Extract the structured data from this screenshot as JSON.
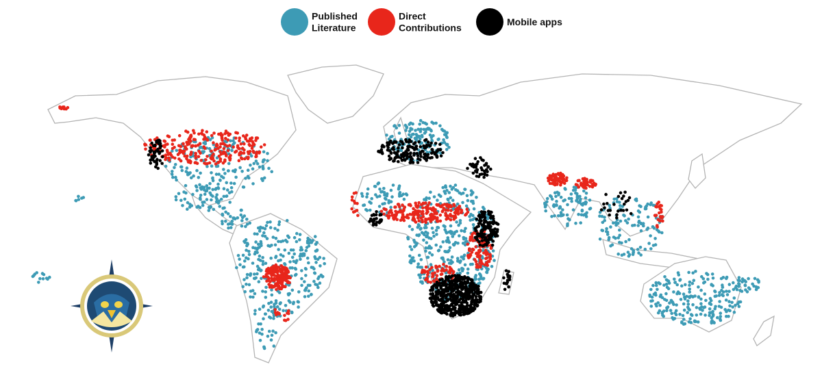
{
  "legend": {
    "items": [
      {
        "lines": [
          "Published",
          "Literature"
        ],
        "color": "#3d9bb5"
      },
      {
        "lines": [
          "Direct",
          "Contributions"
        ],
        "color": "#e8261b"
      },
      {
        "lines": [
          "Mobile apps"
        ],
        "color": "#000000"
      }
    ]
  }
}
